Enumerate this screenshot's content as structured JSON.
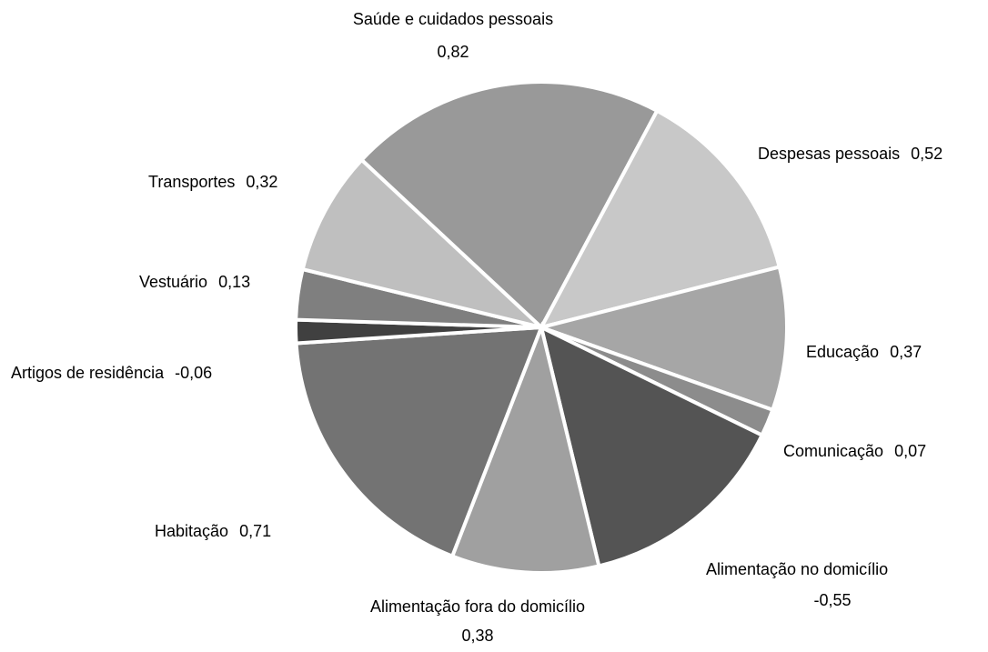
{
  "chart_data": {
    "type": "pie",
    "categories": [
      "Saúde e cuidados pessoais",
      "Despesas pessoais",
      "Educação",
      "Comunicação",
      "Alimentação no domicílio",
      "Alimentação fora do domicílio",
      "Habitação",
      "Artigos de residência",
      "Vestuário",
      "Transportes"
    ],
    "values": [
      0.82,
      0.52,
      0.37,
      0.07,
      -0.55,
      0.38,
      0.71,
      -0.06,
      0.13,
      0.32
    ],
    "value_labels": [
      "0,82",
      "0,52",
      "0,37",
      "0,07",
      "-0,55",
      "0,38",
      "0,71",
      "-0,06",
      "0,13",
      "0,32"
    ],
    "colors": [
      "#999999",
      "#c8c8c8",
      "#a6a6a6",
      "#8c8c8c",
      "#545454",
      "#a0a0a0",
      "#737373",
      "#404040",
      "#7f7f7f",
      "#bfbfbf"
    ]
  }
}
